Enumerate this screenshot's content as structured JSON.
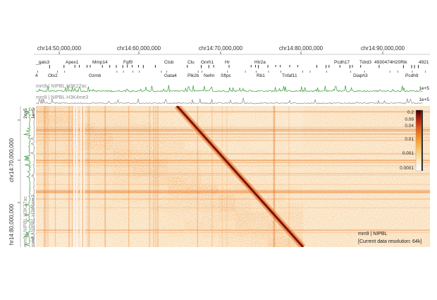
{
  "assembly": "mm9",
  "x_axis": {
    "ticks": [
      "chr14:50,000,000",
      "chr14:60,000,000",
      "chr14:70,000,000",
      "chr14:80,000,000",
      "chr14:90,000,000"
    ]
  },
  "y_axis": {
    "ticks": [
      "chr14:70,000,000",
      "hr14:80,000,000"
    ]
  },
  "genes_top_row": [
    "_gals3",
    "Apex1",
    "Mmp14",
    "Fgf9",
    "Ctsb",
    "Clu",
    "Gnrh1",
    "Hr",
    "Htr2a",
    "Pcdh17",
    "Tdrd3",
    "4930474H20Rik",
    "4921"
  ],
  "genes_bottom_row": [
    "4",
    "Otx2",
    "Gzmb",
    "Gata4",
    "Plk2b",
    "Nefm",
    "Sftpc",
    "Rb1",
    "Tnfaf11",
    "Diaph3",
    "Pcdh9"
  ],
  "tracks": {
    "h3k27ac": {
      "label": "mm9 | NIPBL H3K27ac",
      "scale": "1e+5",
      "color": "#3a9a3a"
    },
    "h3k4me3": {
      "label": "mm9 | NIPBL H3K4me3",
      "scale": "1e+5",
      "color": "#8c8c8c"
    }
  },
  "left_tracks": {
    "h3k27ac": {
      "label": "mm9 | NIPBL H3K27ac",
      "scale": "2e+5"
    },
    "h3k4me3": {
      "label": "mm9 | NIPBL H3K4me3",
      "scale": "1e+5"
    }
  },
  "heatmap": {
    "dataset_label": "mm9 | NIPBL",
    "resolution_label": "[Current data resolution: 64k]"
  },
  "colorbar": {
    "labels": [
      "0.2",
      "0.09",
      "0.04",
      "0.01",
      "0.001",
      "0.0001"
    ],
    "colors": [
      "#ffffff",
      "#fde6b8",
      "#f9c46b",
      "#f29a2e",
      "#e0671c",
      "#b8300f",
      "#7a0d08",
      "#2a0000"
    ]
  }
}
